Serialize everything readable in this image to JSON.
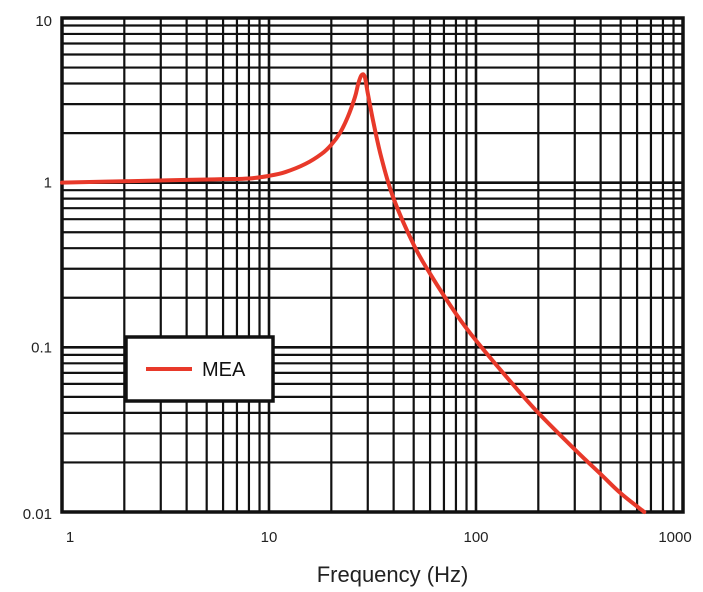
{
  "chart_data": {
    "type": "line",
    "title": "",
    "xlabel": "Frequency (Hz)",
    "ylabel": "",
    "x_scale": "log",
    "y_scale": "log",
    "xlim": [
      1,
      1000
    ],
    "ylim": [
      0.01,
      10
    ],
    "grid": true,
    "legend_position": "lower-left",
    "x_ticks": [
      "1",
      "10",
      "100",
      "1000"
    ],
    "y_ticks": [
      "0.01",
      "0.1",
      "1",
      "10"
    ],
    "series": [
      {
        "name": "MEA",
        "color": "#e8392a",
        "x": [
          1,
          2,
          4,
          6,
          8,
          10,
          12,
          15,
          18,
          20,
          22,
          24,
          26,
          27,
          28,
          29,
          30,
          32,
          35,
          40,
          50,
          60,
          80,
          100,
          150,
          200,
          300,
          400,
          500,
          650
        ],
        "y": [
          1.0,
          1.02,
          1.04,
          1.05,
          1.06,
          1.1,
          1.16,
          1.3,
          1.5,
          1.7,
          2.0,
          2.5,
          3.3,
          4.0,
          4.5,
          4.4,
          3.5,
          2.3,
          1.4,
          0.8,
          0.42,
          0.28,
          0.16,
          0.11,
          0.06,
          0.04,
          0.024,
          0.017,
          0.013,
          0.01
        ]
      }
    ]
  },
  "colors": {
    "grid": "#111111",
    "frame": "#111111",
    "series": "#e8392a"
  }
}
